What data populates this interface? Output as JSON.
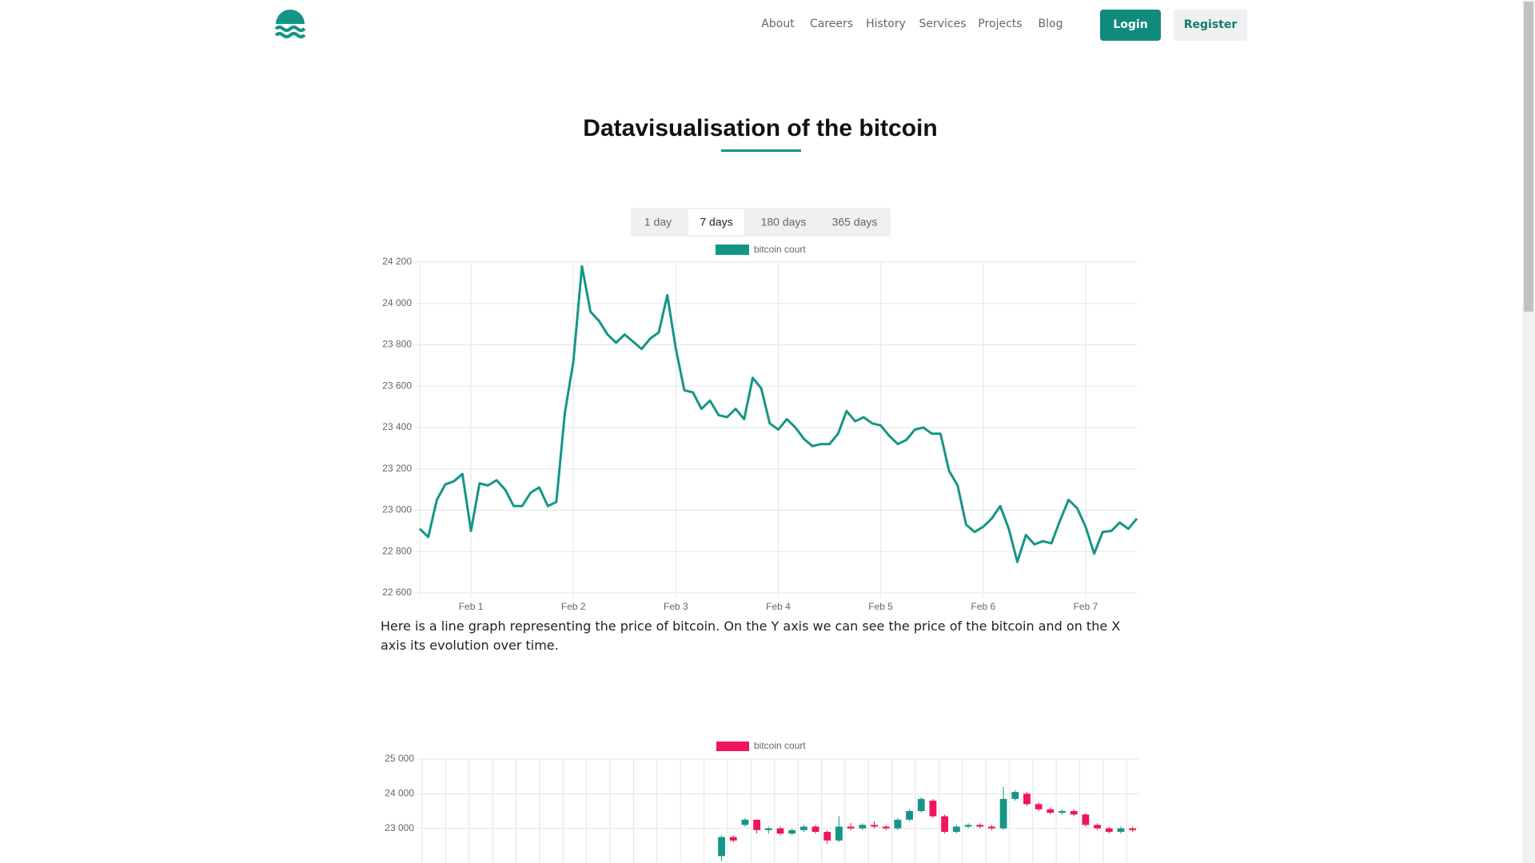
{
  "nav": {
    "links": [
      "About",
      "Careers",
      "History",
      "Services",
      "Projects",
      "Blog"
    ],
    "login": "Login",
    "register": "Register"
  },
  "header": {
    "title": "Datavisualisation of the bitcoin"
  },
  "tabs": {
    "items": [
      "1 day",
      "7 days",
      "180 days",
      "365 days"
    ],
    "active": 1
  },
  "description": "Here is a line graph representing the price of bitcoin. On the Y axis we can see the price of the bitcoin and on the X axis its evolution over time.",
  "chart_data": [
    {
      "type": "line",
      "categories": [
        null,
        null,
        null,
        null,
        null,
        null,
        "Feb 1",
        null,
        null,
        null,
        null,
        null,
        null,
        null,
        null,
        null,
        null,
        null,
        "Feb 2",
        null,
        null,
        null,
        null,
        null,
        null,
        null,
        null,
        null,
        null,
        null,
        "Feb 3",
        null,
        null,
        null,
        null,
        null,
        null,
        null,
        null,
        null,
        null,
        null,
        "Feb 4",
        null,
        null,
        null,
        null,
        null,
        null,
        null,
        null,
        null,
        null,
        null,
        "Feb 5",
        null,
        null,
        null,
        null,
        null,
        null,
        null,
        null,
        null,
        null,
        null,
        "Feb 6",
        null,
        null,
        null,
        null,
        null,
        null,
        null,
        null,
        null,
        null,
        null,
        "Feb 7",
        null,
        null,
        null,
        null,
        null,
        null
      ],
      "series": [
        {
          "name": "bitcoin court",
          "color": "#149687",
          "values": [
            22910,
            22870,
            23050,
            23125,
            23140,
            23175,
            22900,
            23130,
            23120,
            23145,
            23100,
            23020,
            23020,
            23085,
            23110,
            23020,
            23040,
            23470,
            23720,
            24180,
            23960,
            23915,
            23850,
            23810,
            23850,
            23815,
            23780,
            23830,
            23860,
            24040,
            23780,
            23580,
            23570,
            23490,
            23530,
            23460,
            23450,
            23490,
            23440,
            23640,
            23590,
            23420,
            23390,
            23440,
            23400,
            23345,
            23310,
            23320,
            23320,
            23370,
            23480,
            23430,
            23450,
            23420,
            23410,
            23360,
            23320,
            23340,
            23390,
            23400,
            23370,
            23370,
            23190,
            23120,
            22930,
            22895,
            22920,
            22960,
            23020,
            22910,
            22750,
            22880,
            22835,
            22850,
            22840,
            22950,
            23050,
            23010,
            22920,
            22790,
            22895,
            22900,
            22940,
            22910,
            22960
          ]
        }
      ],
      "ylim": [
        22600,
        24200
      ],
      "yticks": [
        {
          "value": 22600,
          "label": "22 600"
        },
        {
          "value": 22800,
          "label": "22 800"
        },
        {
          "value": 23000,
          "label": "23 000"
        },
        {
          "value": 23200,
          "label": "23 200"
        },
        {
          "value": 23400,
          "label": "23 400"
        },
        {
          "value": 23600,
          "label": "23 600"
        },
        {
          "value": 23800,
          "label": "23 800"
        },
        {
          "value": 24000,
          "label": "24 000"
        },
        {
          "value": 24200,
          "label": "24 200"
        }
      ],
      "grid": true
    },
    {
      "type": "candlestick",
      "categories": [
        null,
        null,
        null,
        null,
        null,
        null,
        null,
        null,
        null,
        null,
        null,
        null,
        null,
        null,
        null,
        null,
        null,
        null,
        null,
        null,
        null,
        null,
        null,
        null,
        null,
        null,
        null,
        null,
        null,
        null,
        null,
        null,
        null,
        null,
        null,
        null,
        null,
        null,
        null,
        null,
        null,
        null,
        null,
        null,
        null,
        null,
        null,
        null,
        null,
        null,
        null,
        null,
        null,
        null,
        null,
        null,
        null,
        null,
        null,
        null,
        null
      ],
      "series": [
        {
          "name": "bitcoin court",
          "color": "#f0145a",
          "up_color": "#149687",
          "open": [
            null,
            null,
            null,
            null,
            null,
            null,
            null,
            null,
            null,
            null,
            null,
            null,
            null,
            null,
            null,
            null,
            null,
            null,
            null,
            null,
            null,
            null,
            null,
            null,
            null,
            22200,
            22750,
            23100,
            23250,
            22950,
            23000,
            22850,
            22950,
            23050,
            22900,
            22650,
            23050,
            23000,
            23100,
            23050,
            23000,
            23250,
            23500,
            23800,
            23350,
            22900,
            23050,
            23100,
            23050,
            23000,
            23850,
            24000,
            23700,
            23550,
            23450,
            23500,
            23400,
            23100,
            23000,
            22900,
            23000
          ],
          "high": [
            null,
            null,
            null,
            null,
            null,
            null,
            null,
            null,
            null,
            null,
            null,
            null,
            null,
            null,
            null,
            null,
            null,
            null,
            null,
            null,
            null,
            null,
            null,
            null,
            null,
            22800,
            22800,
            23300,
            23250,
            23050,
            23050,
            23000,
            23100,
            23100,
            22950,
            23350,
            23150,
            23150,
            23200,
            23100,
            23300,
            23550,
            23900,
            23850,
            23400,
            23100,
            23150,
            23150,
            23100,
            24200,
            24100,
            24050,
            23750,
            23600,
            23550,
            23550,
            23450,
            23150,
            23050,
            23050,
            23050
          ],
          "low": [
            null,
            null,
            null,
            null,
            null,
            null,
            null,
            null,
            null,
            null,
            null,
            null,
            null,
            null,
            null,
            null,
            null,
            null,
            null,
            null,
            null,
            null,
            null,
            null,
            null,
            22050,
            22600,
            23050,
            22850,
            22850,
            22800,
            22800,
            22900,
            22850,
            22550,
            22600,
            22950,
            22950,
            23000,
            22950,
            22950,
            23200,
            23450,
            23300,
            22850,
            22850,
            23000,
            23000,
            22950,
            22950,
            23800,
            23650,
            23500,
            23400,
            23400,
            23350,
            23050,
            22950,
            22850,
            22850,
            22900
          ],
          "close": [
            null,
            null,
            null,
            null,
            null,
            null,
            null,
            null,
            null,
            null,
            null,
            null,
            null,
            null,
            null,
            null,
            null,
            null,
            null,
            null,
            null,
            null,
            null,
            null,
            null,
            22750,
            22650,
            23250,
            22950,
            23000,
            22850,
            22950,
            23050,
            22900,
            22650,
            23050,
            23000,
            23100,
            23050,
            23000,
            23250,
            23500,
            23850,
            23350,
            22900,
            23050,
            23100,
            23050,
            23000,
            23850,
            24050,
            23700,
            23550,
            23450,
            23500,
            23400,
            23100,
            23000,
            22900,
            23000,
            22950
          ]
        }
      ],
      "ylim": [
        22000,
        25000
      ],
      "yticks": [
        {
          "value": 23000,
          "label": "23 000"
        },
        {
          "value": 24000,
          "label": "24 000"
        },
        {
          "value": 25000,
          "label": "25 000"
        }
      ],
      "grid": true
    }
  ]
}
